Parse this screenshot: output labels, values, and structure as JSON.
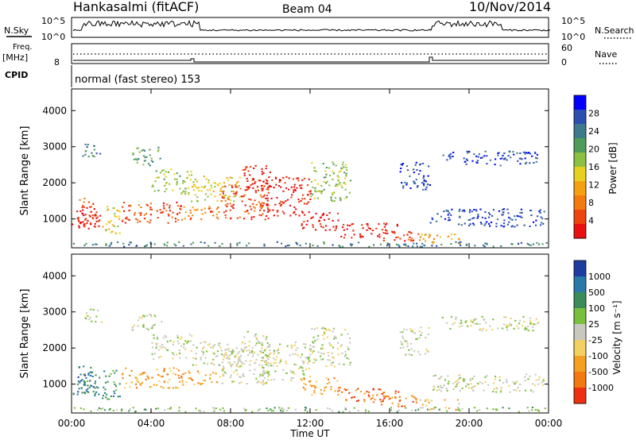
{
  "header": {
    "site": "Hankasalmi (fitACF)",
    "beam": "Beam 04",
    "date": "10/Nov/2014"
  },
  "noise_panel": {
    "left_label": "N.Sky",
    "right_label": "N.Search",
    "ticks_left": [
      "10^5",
      "10^0"
    ],
    "ticks_right": [
      "10^5",
      "10^0"
    ]
  },
  "freq_panel": {
    "left_label_1": "Freq.",
    "left_label_2": "[MHz]",
    "left_tick": "8",
    "right_label": "Nave",
    "right_ticks": [
      "60",
      "0"
    ]
  },
  "cpid": {
    "label": "CPID",
    "text": "normal (fast stereo) 153"
  },
  "chart_data": [
    {
      "type": "heatmap",
      "name": "power",
      "ylabel": "Slant Range [km]",
      "yticks": [
        "1000",
        "2000",
        "3000",
        "4000"
      ],
      "ylim": [
        200,
        4600
      ],
      "colorbar_label": "Power [dB]",
      "colorbar_ticks": [
        "4",
        "8",
        "12",
        "16",
        "20",
        "24",
        "28"
      ],
      "colorbar_colors": [
        "#0000ff",
        "#2a4fb0",
        "#3c7a8c",
        "#4f9c5a",
        "#8cc040",
        "#e8d020",
        "#f4a010",
        "#f47a10",
        "#ee4410",
        "#e81010"
      ],
      "xticks": [
        "00:00",
        "04:00",
        "08:00",
        "12:00",
        "16:00",
        "20:00",
        "00:00"
      ],
      "xlim": [
        0,
        24
      ]
    },
    {
      "type": "heatmap",
      "name": "velocity",
      "ylabel": "Slant Range [km]",
      "yticks": [
        "1000",
        "2000",
        "3000",
        "4000"
      ],
      "ylim": [
        200,
        4600
      ],
      "colorbar_label": "Velocity [m s⁻¹]",
      "colorbar_ticks": [
        "1000",
        "500",
        "100",
        "25",
        "-25",
        "-100",
        "-500",
        "-1000"
      ],
      "colorbar_colors": [
        "#1e3ca0",
        "#2878a8",
        "#3c8c5a",
        "#78c03c",
        "#c8c8c0",
        "#f4d060",
        "#f4a020",
        "#f47810",
        "#ee3010"
      ],
      "xlabel": "Time UT",
      "xticks": [
        "00:00",
        "04:00",
        "08:00",
        "12:00",
        "16:00",
        "20:00",
        "00:00"
      ],
      "xlim": [
        0,
        24
      ]
    }
  ]
}
